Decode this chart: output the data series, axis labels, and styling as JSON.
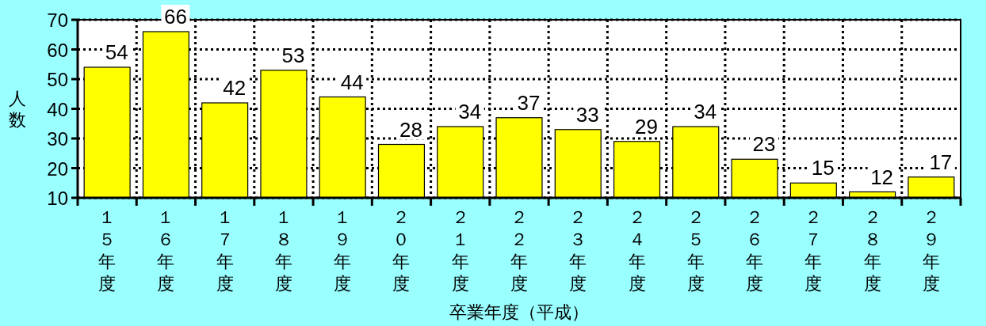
{
  "chart_data": {
    "type": "bar",
    "xlabel": "卒業年度（平成）",
    "ylabel": "人数",
    "categories": [
      "１５年度",
      "１６年度",
      "１７年度",
      "１８年度",
      "１９年度",
      "２０年度",
      "２１年度",
      "２２年度",
      "２３年度",
      "２４年度",
      "２５年度",
      "２６年度",
      "２７年度",
      "２８年度",
      "２９年度"
    ],
    "values": [
      54,
      66,
      42,
      53,
      44,
      28,
      34,
      37,
      33,
      29,
      34,
      23,
      15,
      12,
      17
    ],
    "color": "#ffff00",
    "ylim": [
      10,
      70
    ],
    "yticks": [
      10,
      20,
      30,
      40,
      50,
      60,
      70
    ],
    "grid": true,
    "data_labels": true
  }
}
